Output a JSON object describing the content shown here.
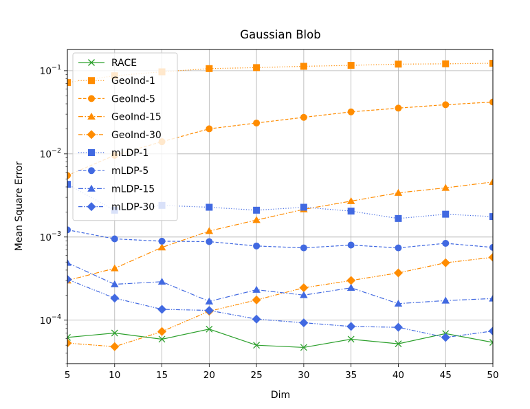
{
  "chart_data": {
    "type": "line",
    "title": "Gaussian Blob",
    "xlabel": "Dim",
    "ylabel": "Mean Square Error",
    "x": [
      5,
      10,
      15,
      20,
      25,
      30,
      35,
      40,
      45,
      50
    ],
    "xlim": [
      5,
      50
    ],
    "ylim": [
      3e-05,
      0.18
    ],
    "yscale": "log",
    "grid": true,
    "legend_position": "upper-left",
    "xticks": [
      5,
      10,
      15,
      20,
      25,
      30,
      35,
      40,
      45,
      50
    ],
    "yticks": [
      {
        "value": 0.1,
        "base": "10",
        "exp": "−1"
      },
      {
        "value": 0.01,
        "base": "10",
        "exp": "−2"
      },
      {
        "value": 0.001,
        "base": "10",
        "exp": "−3"
      },
      {
        "value": 0.0001,
        "base": "10",
        "exp": "−4"
      }
    ],
    "series": [
      {
        "name": "RACE",
        "color": "#2ca02c",
        "marker": "x",
        "dash": "solid",
        "values": [
          6.2e-05,
          7e-05,
          5.9e-05,
          7.8e-05,
          5e-05,
          4.7e-05,
          5.9e-05,
          5.2e-05,
          6.9e-05,
          5.4e-05
        ]
      },
      {
        "name": "GeoInd-1",
        "color": "#ff8c00",
        "marker": "square",
        "dash": "dotted",
        "values": [
          0.072,
          0.087,
          0.097,
          0.106,
          0.109,
          0.113,
          0.116,
          0.12,
          0.121,
          0.123
        ]
      },
      {
        "name": "GeoInd-5",
        "color": "#ff8c00",
        "marker": "circle",
        "dash": "dashed",
        "values": [
          0.0055,
          0.0096,
          0.014,
          0.02,
          0.0235,
          0.0275,
          0.032,
          0.0355,
          0.039,
          0.042
        ]
      },
      {
        "name": "GeoInd-15",
        "color": "#ff8c00",
        "marker": "triangle",
        "dash": "dashdot",
        "values": [
          0.0003,
          0.00042,
          0.00075,
          0.00118,
          0.0016,
          0.00215,
          0.0027,
          0.0034,
          0.0039,
          0.0046
        ]
      },
      {
        "name": "GeoInd-30",
        "color": "#ff8c00",
        "marker": "diamond",
        "dash": "dashdotdot",
        "values": [
          5.3e-05,
          4.8e-05,
          7.3e-05,
          0.000128,
          0.000175,
          0.000245,
          0.0003,
          0.00037,
          0.00049,
          0.00057
        ]
      },
      {
        "name": "mLDP-1",
        "color": "#4169e1",
        "marker": "square",
        "dash": "dotted",
        "values": [
          0.0043,
          0.0021,
          0.0024,
          0.00228,
          0.0021,
          0.00228,
          0.00205,
          0.00167,
          0.00188,
          0.00176
        ]
      },
      {
        "name": "mLDP-5",
        "color": "#4169e1",
        "marker": "circle",
        "dash": "dashed",
        "values": [
          0.00122,
          0.00095,
          0.00089,
          0.00088,
          0.00078,
          0.00074,
          0.0008,
          0.00074,
          0.00084,
          0.00075
        ]
      },
      {
        "name": "mLDP-15",
        "color": "#4169e1",
        "marker": "triangle",
        "dash": "dashdot",
        "values": [
          0.00049,
          0.00027,
          0.00029,
          0.000168,
          0.000232,
          0.0002,
          0.000245,
          0.000158,
          0.000172,
          0.000182
        ]
      },
      {
        "name": "mLDP-30",
        "color": "#4169e1",
        "marker": "diamond",
        "dash": "dashdotdot",
        "values": [
          0.00031,
          0.000184,
          0.000135,
          0.000131,
          0.000103,
          9.3e-05,
          8.4e-05,
          8.2e-05,
          6.2e-05,
          7.4e-05
        ]
      }
    ]
  }
}
